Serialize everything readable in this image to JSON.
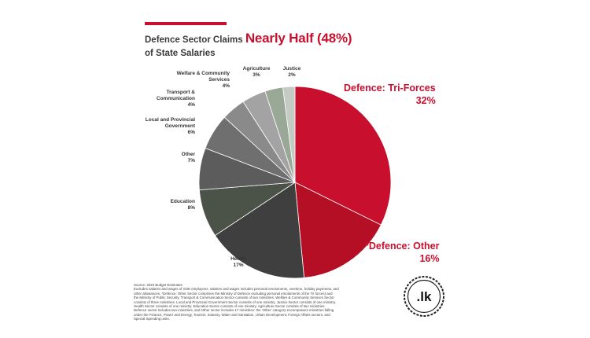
{
  "title": {
    "prefix": "Defence Sector Claims",
    "highlight": "Nearly Half (48%)",
    "line2": "of State Salaries"
  },
  "chart_data": {
    "type": "pie",
    "start": "12 o'clock, clockwise",
    "slices": [
      {
        "name": "Defence: Tri-Forces",
        "label": "Defence: Tri-Forces",
        "pct_label": "32%",
        "value": 32,
        "color": "#c8102e"
      },
      {
        "name": "Defence: Other",
        "label": "*Defence: Other",
        "pct_label": "16%",
        "value": 16,
        "color": "#b50f26"
      },
      {
        "name": "Health",
        "label": "Health",
        "pct_label": "17%",
        "value": 17,
        "color": "#3f3f3f"
      },
      {
        "name": "Education",
        "label": "Education",
        "pct_label": "8%",
        "value": 8,
        "color": "#4b5248"
      },
      {
        "name": "Other",
        "label": "Other",
        "pct_label": "7%",
        "value": 7,
        "color": "#5c5c5c"
      },
      {
        "name": "Local and Provincial Government",
        "label": "Local and Provincial\nGovernment",
        "pct_label": "6%",
        "value": 6,
        "color": "#6f6f6f"
      },
      {
        "name": "Transport & Communication",
        "label": "Transport &\nCommunication",
        "pct_label": "4%",
        "value": 4,
        "color": "#8a8a8a"
      },
      {
        "name": "Welfare & Community Services",
        "label": "Welfare & Community\nServices",
        "pct_label": "4%",
        "value": 4,
        "color": "#a3a3a3"
      },
      {
        "name": "Agriculture",
        "label": "Agriculture",
        "pct_label": "3%",
        "value": 3,
        "color": "#9aa898"
      },
      {
        "name": "Justice",
        "label": "Justice",
        "pct_label": "2%",
        "value": 2,
        "color": "#c4cbc2"
      }
    ]
  },
  "notes": {
    "source": "Source: 2023 Budget Estimates",
    "lines": [
      "Excludes salaries and wages of SOE employees. salaries and wages includes personal emoluments, overtime, holiday payments, and",
      "other allowances. *Defence: Other Sector comprises the Ministry of Defence excluding personal emoluments of the Tri forces) and",
      "the Ministry of Public Security. Transport & Communication Sector consists of two ministries. Welfare & Community Services Sector",
      "consists of three ministries. Local and Provincial Government Sector consists of one ministry. Justice Sector consists of one ministry.",
      "Health Sector consists of one ministry. Education Sector consists of one ministry. Agriculture Sector consists of two ministries.",
      "Defence sector includes two ministries, and Other sector includes 17 ministries: the 'Other' category encompasses ministries falling",
      "under the Finance, Power and Energy, Tourism, Industry, Water and Sanitation, Urban Development, Foreign Affairs sectors, and",
      "Special Spending units."
    ]
  },
  "logo": {
    "text": ".lk"
  }
}
